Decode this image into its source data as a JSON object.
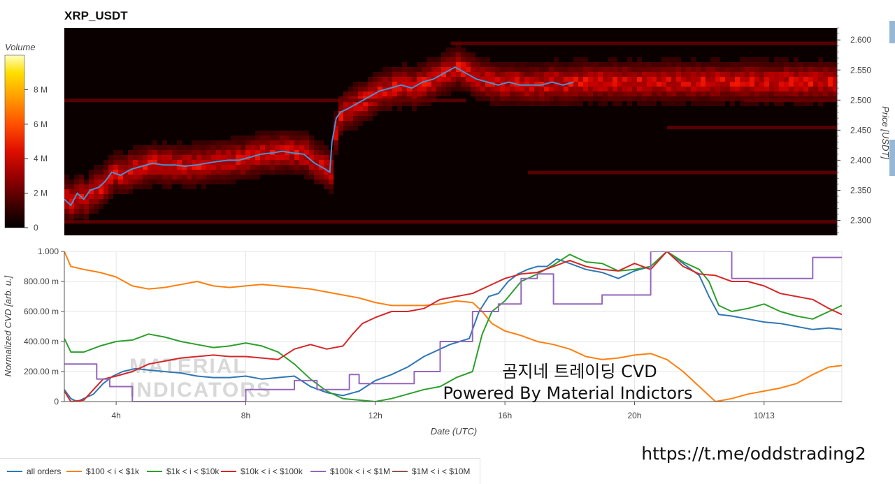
{
  "chart_data": [
    {
      "type": "heatmap",
      "title": "XRP_USDT",
      "ylabel": "Price [USDT]",
      "ylim": [
        2.275,
        2.62
      ],
      "y_ticks": [
        "2.300",
        "2.350",
        "2.400",
        "2.450",
        "2.500",
        "2.550",
        "2.600"
      ],
      "colorbar": {
        "title": "Volume",
        "range": [
          0,
          10000000
        ],
        "ticks": [
          "0",
          "2 M",
          "4 M",
          "6 M",
          "8 M"
        ]
      },
      "x_range_hours": [
        2.4,
        38.2
      ],
      "price_line_color": "#4a8fd0",
      "price_line": [
        [
          2.4,
          2.335
        ],
        [
          2.7,
          2.325
        ],
        [
          3.0,
          2.345
        ],
        [
          3.3,
          2.335
        ],
        [
          3.6,
          2.35
        ],
        [
          4.0,
          2.355
        ],
        [
          4.3,
          2.365
        ],
        [
          4.6,
          2.38
        ],
        [
          5.0,
          2.375
        ],
        [
          5.5,
          2.385
        ],
        [
          6.0,
          2.39
        ],
        [
          6.5,
          2.395
        ],
        [
          7.0,
          2.392
        ],
        [
          7.5,
          2.392
        ],
        [
          8.0,
          2.39
        ],
        [
          8.5,
          2.392
        ],
        [
          9.0,
          2.395
        ],
        [
          9.5,
          2.398
        ],
        [
          10.0,
          2.4
        ],
        [
          10.5,
          2.4
        ],
        [
          11.0,
          2.405
        ],
        [
          11.5,
          2.41
        ],
        [
          12.0,
          2.412
        ],
        [
          12.5,
          2.415
        ],
        [
          13.0,
          2.412
        ],
        [
          13.5,
          2.41
        ],
        [
          14.0,
          2.395
        ],
        [
          14.5,
          2.385
        ],
        [
          14.7,
          2.38
        ],
        [
          14.8,
          2.43
        ],
        [
          15.0,
          2.47
        ],
        [
          15.2,
          2.48
        ],
        [
          15.5,
          2.485
        ],
        [
          16.0,
          2.495
        ],
        [
          16.5,
          2.505
        ],
        [
          17.0,
          2.515
        ],
        [
          17.5,
          2.52
        ],
        [
          18.0,
          2.525
        ],
        [
          18.5,
          2.52
        ],
        [
          19.0,
          2.53
        ],
        [
          19.5,
          2.535
        ],
        [
          20.0,
          2.545
        ],
        [
          20.5,
          2.555
        ],
        [
          21.0,
          2.545
        ],
        [
          21.5,
          2.535
        ],
        [
          22.0,
          2.53
        ],
        [
          22.5,
          2.525
        ],
        [
          23.0,
          2.53
        ],
        [
          23.5,
          2.525
        ],
        [
          24.0,
          2.525
        ],
        [
          24.5,
          2.525
        ],
        [
          25.0,
          2.53
        ],
        [
          25.5,
          2.525
        ],
        [
          26.0,
          2.53
        ]
      ]
    },
    {
      "type": "line",
      "xlabel": "Date (UTC)",
      "ylabel": "Normalized CVD [arb. u.]",
      "ylim": [
        0,
        1
      ],
      "y_ticks": [
        {
          "v": 0,
          "label": "0"
        },
        {
          "v": 0.2,
          "label": "200.00 m"
        },
        {
          "v": 0.4,
          "label": "400.00 m"
        },
        {
          "v": 0.6,
          "label": "600.00 m"
        },
        {
          "v": 0.8,
          "label": "800.00 m"
        },
        {
          "v": 1.0,
          "label": "1.000"
        }
      ],
      "x_range_hours": [
        2.4,
        26.4
      ],
      "x_ticks": [
        {
          "h": 4,
          "label": "4h"
        },
        {
          "h": 8,
          "label": "8h"
        },
        {
          "h": 12,
          "label": "12h"
        },
        {
          "h": 16,
          "label": "16h"
        },
        {
          "h": 20,
          "label": "20h"
        },
        {
          "h": 24,
          "label": "10/13"
        }
      ],
      "series": [
        {
          "name": "all orders",
          "color": "#2f77b4",
          "x": [
            2.4,
            2.6,
            2.8,
            3.0,
            3.3,
            3.6,
            3.9,
            4.2,
            4.6,
            5.0,
            5.5,
            6.0,
            6.5,
            7.0,
            7.5,
            8.0,
            8.5,
            9.0,
            9.5,
            10.0,
            10.5,
            11.0,
            11.5,
            12.0,
            12.5,
            13.0,
            13.5,
            14.0,
            14.3,
            14.6,
            14.9,
            15.2,
            15.5,
            15.8,
            16.1,
            16.4,
            16.7,
            17.0,
            17.3,
            17.6,
            18.0,
            18.5,
            19.0,
            19.5,
            20.0,
            20.5,
            21.0,
            21.5,
            22.0,
            22.3,
            22.6,
            23.0,
            23.5,
            24.0,
            24.5,
            25.0,
            25.5,
            26.0,
            26.4
          ],
          "y": [
            0.08,
            0.02,
            0.0,
            0.02,
            0.05,
            0.12,
            0.17,
            0.2,
            0.22,
            0.21,
            0.2,
            0.19,
            0.17,
            0.16,
            0.16,
            0.17,
            0.15,
            0.16,
            0.17,
            0.1,
            0.06,
            0.04,
            0.07,
            0.14,
            0.18,
            0.23,
            0.3,
            0.35,
            0.38,
            0.4,
            0.42,
            0.6,
            0.7,
            0.72,
            0.8,
            0.85,
            0.88,
            0.9,
            0.9,
            0.95,
            0.92,
            0.88,
            0.86,
            0.82,
            0.87,
            0.9,
            1.0,
            0.92,
            0.84,
            0.7,
            0.58,
            0.57,
            0.55,
            0.53,
            0.52,
            0.5,
            0.48,
            0.49,
            0.48
          ]
        },
        {
          "name": "$100 < i < $1k",
          "color": "#ff7f0e",
          "x": [
            2.4,
            2.6,
            3.0,
            3.5,
            4.0,
            4.5,
            5.0,
            5.5,
            6.0,
            6.5,
            7.0,
            7.5,
            8.0,
            8.5,
            9.0,
            9.5,
            10.0,
            10.5,
            11.0,
            11.5,
            12.0,
            12.5,
            13.0,
            13.5,
            14.0,
            14.5,
            15.0,
            15.3,
            15.6,
            16.0,
            16.5,
            17.0,
            17.5,
            18.0,
            18.5,
            19.0,
            19.5,
            20.0,
            20.5,
            21.0,
            21.5,
            22.0,
            22.5,
            23.0,
            23.5,
            24.0,
            24.5,
            25.0,
            25.5,
            26.0,
            26.4
          ],
          "y": [
            1.0,
            0.9,
            0.88,
            0.86,
            0.83,
            0.77,
            0.75,
            0.76,
            0.78,
            0.8,
            0.77,
            0.76,
            0.77,
            0.78,
            0.77,
            0.76,
            0.75,
            0.73,
            0.71,
            0.69,
            0.66,
            0.64,
            0.64,
            0.64,
            0.65,
            0.67,
            0.66,
            0.6,
            0.52,
            0.47,
            0.44,
            0.4,
            0.38,
            0.35,
            0.3,
            0.28,
            0.29,
            0.31,
            0.32,
            0.28,
            0.2,
            0.1,
            0.0,
            0.02,
            0.05,
            0.07,
            0.09,
            0.12,
            0.18,
            0.23,
            0.24
          ]
        },
        {
          "name": "$1k < i < $10k",
          "color": "#2ca02c",
          "x": [
            2.4,
            2.6,
            3.0,
            3.5,
            4.0,
            4.5,
            5.0,
            5.5,
            6.0,
            6.5,
            7.0,
            7.5,
            8.0,
            8.5,
            9.0,
            9.5,
            10.0,
            10.5,
            11.0,
            11.5,
            12.0,
            12.5,
            13.0,
            13.5,
            14.0,
            14.5,
            15.0,
            15.3,
            15.6,
            16.0,
            16.5,
            17.0,
            17.5,
            18.0,
            18.5,
            19.0,
            19.5,
            20.0,
            20.5,
            21.0,
            21.5,
            22.0,
            22.3,
            22.6,
            23.0,
            23.5,
            24.0,
            24.5,
            25.0,
            25.5,
            26.0,
            26.4
          ],
          "y": [
            0.42,
            0.33,
            0.33,
            0.37,
            0.4,
            0.41,
            0.45,
            0.43,
            0.4,
            0.38,
            0.36,
            0.37,
            0.39,
            0.37,
            0.33,
            0.25,
            0.15,
            0.07,
            0.02,
            0.01,
            0.0,
            0.02,
            0.05,
            0.08,
            0.1,
            0.16,
            0.2,
            0.45,
            0.6,
            0.67,
            0.8,
            0.85,
            0.91,
            0.98,
            0.93,
            0.92,
            0.87,
            0.88,
            0.9,
            1.0,
            0.93,
            0.88,
            0.8,
            0.64,
            0.6,
            0.62,
            0.65,
            0.6,
            0.57,
            0.55,
            0.6,
            0.64
          ]
        },
        {
          "name": "$10k < i < $100k",
          "color": "#d62728",
          "x": [
            2.4,
            2.6,
            3.0,
            3.3,
            3.6,
            4.0,
            4.5,
            5.0,
            5.5,
            6.0,
            6.5,
            7.0,
            7.5,
            8.0,
            8.5,
            9.0,
            9.5,
            10.0,
            10.5,
            11.0,
            11.3,
            11.6,
            12.0,
            12.5,
            13.0,
            13.5,
            14.0,
            14.5,
            15.0,
            15.5,
            16.0,
            16.5,
            17.0,
            17.5,
            18.0,
            18.5,
            19.0,
            19.5,
            20.0,
            20.5,
            21.0,
            21.5,
            22.0,
            22.5,
            23.0,
            23.5,
            24.0,
            24.5,
            25.0,
            25.5,
            26.0,
            26.4
          ],
          "y": [
            0.07,
            0.0,
            0.01,
            0.08,
            0.15,
            0.17,
            0.2,
            0.25,
            0.27,
            0.29,
            0.3,
            0.31,
            0.3,
            0.3,
            0.29,
            0.28,
            0.35,
            0.38,
            0.35,
            0.37,
            0.45,
            0.52,
            0.56,
            0.6,
            0.6,
            0.62,
            0.68,
            0.7,
            0.72,
            0.77,
            0.82,
            0.85,
            0.86,
            0.9,
            0.94,
            0.9,
            0.88,
            0.87,
            0.92,
            0.88,
            1.0,
            0.9,
            0.85,
            0.84,
            0.8,
            0.8,
            0.77,
            0.72,
            0.7,
            0.68,
            0.62,
            0.58
          ]
        },
        {
          "name": "$100k < i < $1M",
          "color": "#9467bd",
          "x": [
            2.4,
            3.4,
            3.4,
            3.8,
            3.8,
            4.5,
            4.5,
            8.0,
            8.0,
            9.5,
            9.5,
            10.2,
            10.2,
            11.2,
            11.2,
            11.5,
            11.5,
            13.2,
            13.2,
            14.0,
            14.0,
            15.0,
            15.0,
            15.8,
            15.8,
            16.5,
            16.5,
            17.0,
            17.0,
            17.5,
            17.5,
            19.0,
            19.0,
            20.5,
            20.5,
            23.0,
            23.0,
            25.5,
            25.5,
            26.4
          ],
          "y": [
            0.25,
            0.25,
            0.15,
            0.15,
            0.1,
            0.1,
            0.0,
            0.0,
            0.08,
            0.08,
            0.14,
            0.14,
            0.08,
            0.08,
            0.18,
            0.18,
            0.12,
            0.12,
            0.2,
            0.2,
            0.4,
            0.4,
            0.6,
            0.6,
            0.65,
            0.65,
            0.82,
            0.82,
            0.85,
            0.85,
            0.65,
            0.65,
            0.71,
            0.71,
            1.0,
            1.0,
            0.82,
            0.82,
            0.96,
            0.96
          ]
        },
        {
          "name": "$1M < i < $10M",
          "color": "#8c564b",
          "x": [],
          "y": []
        }
      ]
    }
  ],
  "overlay": {
    "line1": "곰지네 트레이딩 CVD",
    "line2": "Powered By Material Indictors",
    "url": "https://t.me/oddstrading2"
  },
  "watermark": {
    "line1": "MATERIAL",
    "line2": "INDICATORS"
  }
}
